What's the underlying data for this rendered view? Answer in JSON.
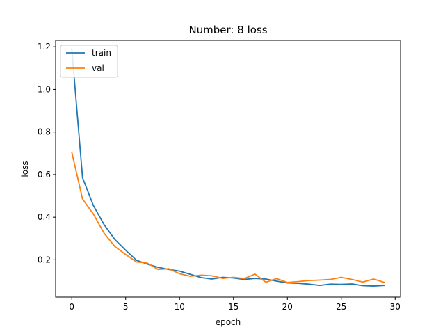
{
  "chart_data": {
    "type": "line",
    "title": "Number: 8 loss",
    "xlabel": "epoch",
    "ylabel": "loss",
    "x": [
      0,
      1,
      2,
      3,
      4,
      5,
      6,
      7,
      8,
      9,
      10,
      11,
      12,
      13,
      14,
      15,
      16,
      17,
      18,
      19,
      20,
      21,
      22,
      23,
      24,
      25,
      26,
      27,
      28,
      29
    ],
    "xlim": [
      -1.5,
      30.5
    ],
    "ylim": [
      0.025,
      1.23
    ],
    "x_ticks": [
      0,
      5,
      10,
      15,
      20,
      25,
      30
    ],
    "x_tick_labels": [
      "0",
      "5",
      "10",
      "15",
      "20",
      "25",
      "30"
    ],
    "y_ticks": [
      0.2,
      0.4,
      0.6,
      0.8,
      1.0,
      1.2
    ],
    "y_tick_labels": [
      "0.2",
      "0.4",
      "0.6",
      "0.8",
      "1.0",
      "1.2"
    ],
    "grid": false,
    "legend_position": "top-left",
    "series": [
      {
        "name": "train",
        "color": "#1f77b4",
        "values": [
          1.19,
          0.585,
          0.455,
          0.365,
          0.295,
          0.245,
          0.198,
          0.18,
          0.165,
          0.155,
          0.147,
          0.132,
          0.117,
          0.11,
          0.118,
          0.115,
          0.108,
          0.113,
          0.11,
          0.1,
          0.092,
          0.09,
          0.086,
          0.08,
          0.086,
          0.085,
          0.087,
          0.079,
          0.077,
          0.08
        ]
      },
      {
        "name": "val",
        "color": "#ff7f0e",
        "values": [
          0.705,
          0.485,
          0.415,
          0.325,
          0.262,
          0.225,
          0.19,
          0.185,
          0.155,
          0.158,
          0.135,
          0.123,
          0.128,
          0.125,
          0.113,
          0.118,
          0.112,
          0.133,
          0.095,
          0.112,
          0.094,
          0.098,
          0.103,
          0.105,
          0.108,
          0.118,
          0.108,
          0.096,
          0.11,
          0.094
        ]
      }
    ]
  }
}
